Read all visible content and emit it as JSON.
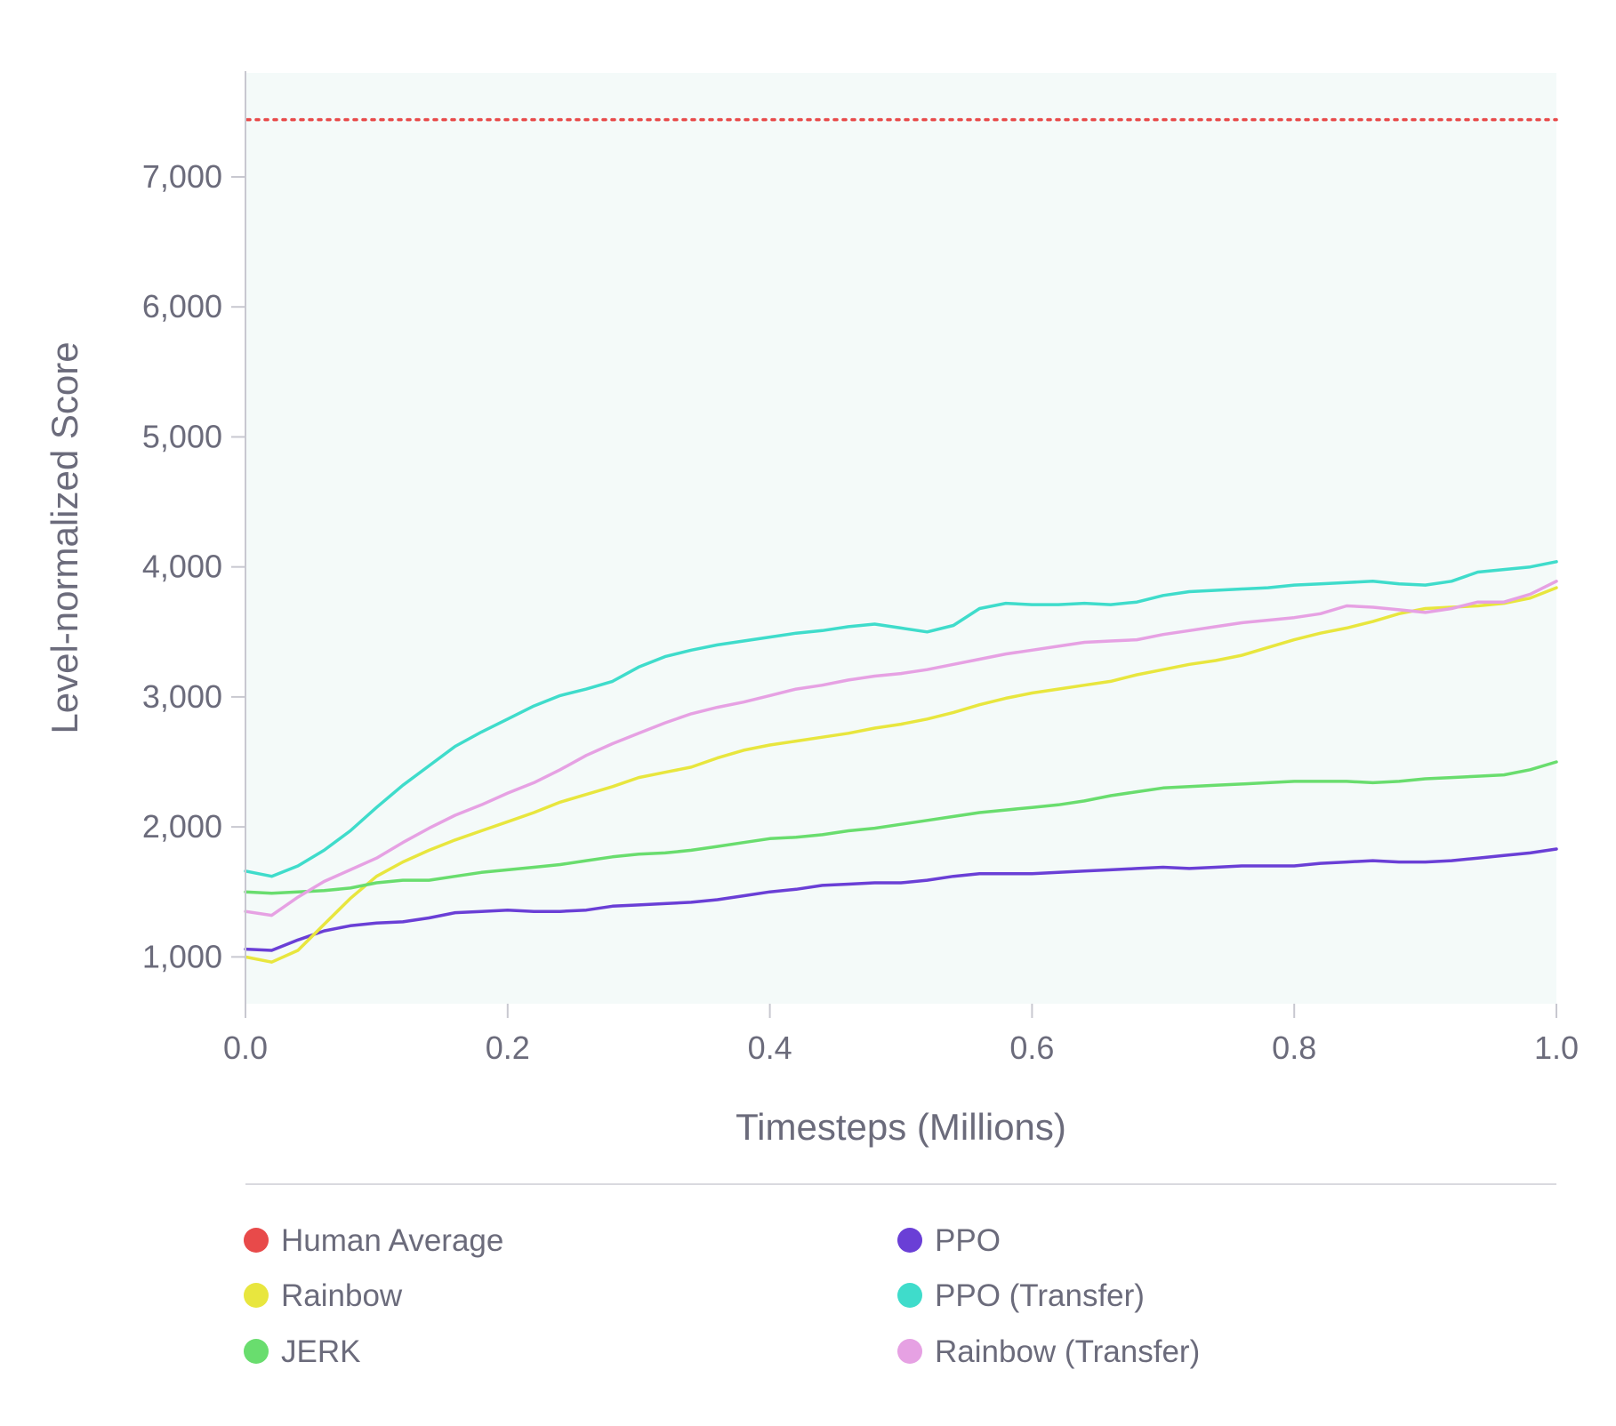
{
  "chart_data": {
    "type": "line",
    "title": "",
    "xlabel": "Timesteps (Millions)",
    "ylabel": "Level-normalized Score",
    "xlim": [
      0,
      1
    ],
    "ylim": [
      640,
      7800
    ],
    "x_ticks": [
      "0.0",
      "0.2",
      "0.4",
      "0.6",
      "0.8",
      "1.0"
    ],
    "y_ticks": [
      "1,000",
      "2,000",
      "3,000",
      "4,000",
      "5,000",
      "6,000",
      "7,000"
    ],
    "plot_background": "#f4faf9",
    "legend_position": "bottom",
    "reference_lines": [
      {
        "name": "Human Average",
        "y": 7440,
        "color": "#e84a4a",
        "style": "dotted"
      }
    ],
    "x": [
      0.0,
      0.02,
      0.04,
      0.06,
      0.08,
      0.1,
      0.12,
      0.14,
      0.16,
      0.18,
      0.2,
      0.22,
      0.24,
      0.26,
      0.28,
      0.3,
      0.32,
      0.34,
      0.36,
      0.38,
      0.4,
      0.42,
      0.44,
      0.46,
      0.48,
      0.5,
      0.52,
      0.54,
      0.56,
      0.58,
      0.6,
      0.62,
      0.64,
      0.66,
      0.68,
      0.7,
      0.72,
      0.74,
      0.76,
      0.78,
      0.8,
      0.82,
      0.84,
      0.86,
      0.88,
      0.9,
      0.92,
      0.94,
      0.96,
      0.98,
      1.0
    ],
    "series": [
      {
        "name": "PPO",
        "color": "#6a3fd6",
        "values": [
          1060,
          1050,
          1130,
          1200,
          1240,
          1260,
          1270,
          1300,
          1340,
          1350,
          1360,
          1350,
          1350,
          1360,
          1390,
          1400,
          1410,
          1420,
          1440,
          1470,
          1500,
          1520,
          1550,
          1560,
          1570,
          1570,
          1590,
          1620,
          1640,
          1640,
          1640,
          1650,
          1660,
          1670,
          1680,
          1690,
          1680,
          1690,
          1700,
          1700,
          1700,
          1720,
          1730,
          1740,
          1730,
          1730,
          1740,
          1760,
          1780,
          1800,
          1830
        ]
      },
      {
        "name": "Rainbow",
        "color": "#e8e63e",
        "values": [
          1000,
          960,
          1050,
          1250,
          1450,
          1620,
          1730,
          1820,
          1900,
          1970,
          2040,
          2110,
          2190,
          2250,
          2310,
          2380,
          2420,
          2460,
          2530,
          2590,
          2630,
          2660,
          2690,
          2720,
          2760,
          2790,
          2830,
          2880,
          2940,
          2990,
          3030,
          3060,
          3090,
          3120,
          3170,
          3210,
          3250,
          3280,
          3320,
          3380,
          3440,
          3490,
          3530,
          3580,
          3640,
          3680,
          3690,
          3700,
          3720,
          3760,
          3840
        ]
      },
      {
        "name": "JERK",
        "color": "#69dd6e",
        "values": [
          1500,
          1490,
          1500,
          1510,
          1530,
          1570,
          1590,
          1590,
          1620,
          1650,
          1670,
          1690,
          1710,
          1740,
          1770,
          1790,
          1800,
          1820,
          1850,
          1880,
          1910,
          1920,
          1940,
          1970,
          1990,
          2020,
          2050,
          2080,
          2110,
          2130,
          2150,
          2170,
          2200,
          2240,
          2270,
          2300,
          2310,
          2320,
          2330,
          2340,
          2350,
          2350,
          2350,
          2340,
          2350,
          2370,
          2380,
          2390,
          2400,
          2440,
          2500
        ]
      },
      {
        "name": "PPO (Transfer)",
        "color": "#3fdccb",
        "values": [
          1660,
          1620,
          1700,
          1820,
          1970,
          2150,
          2320,
          2470,
          2620,
          2730,
          2830,
          2930,
          3010,
          3060,
          3120,
          3230,
          3310,
          3360,
          3400,
          3430,
          3460,
          3490,
          3510,
          3540,
          3560,
          3530,
          3500,
          3550,
          3680,
          3720,
          3710,
          3710,
          3720,
          3710,
          3730,
          3780,
          3810,
          3820,
          3830,
          3840,
          3860,
          3870,
          3880,
          3890,
          3870,
          3860,
          3890,
          3960,
          3980,
          4000,
          4040
        ]
      },
      {
        "name": "Rainbow (Transfer)",
        "color": "#e6a1e3",
        "values": [
          1350,
          1320,
          1460,
          1580,
          1670,
          1760,
          1880,
          1990,
          2090,
          2170,
          2260,
          2340,
          2440,
          2550,
          2640,
          2720,
          2800,
          2870,
          2920,
          2960,
          3010,
          3060,
          3090,
          3130,
          3160,
          3180,
          3210,
          3250,
          3290,
          3330,
          3360,
          3390,
          3420,
          3430,
          3440,
          3480,
          3510,
          3540,
          3570,
          3590,
          3610,
          3640,
          3700,
          3690,
          3670,
          3650,
          3680,
          3730,
          3730,
          3790,
          3890
        ]
      }
    ],
    "legend": [
      {
        "label": "Human Average",
        "color": "#e84a4a"
      },
      {
        "label": "Rainbow",
        "color": "#e8e63e"
      },
      {
        "label": "JERK",
        "color": "#69dd6e"
      },
      {
        "label": "PPO",
        "color": "#6a3fd6"
      },
      {
        "label": "PPO (Transfer)",
        "color": "#3fdccb"
      },
      {
        "label": "Rainbow (Transfer)",
        "color": "#e6a1e3"
      }
    ]
  }
}
